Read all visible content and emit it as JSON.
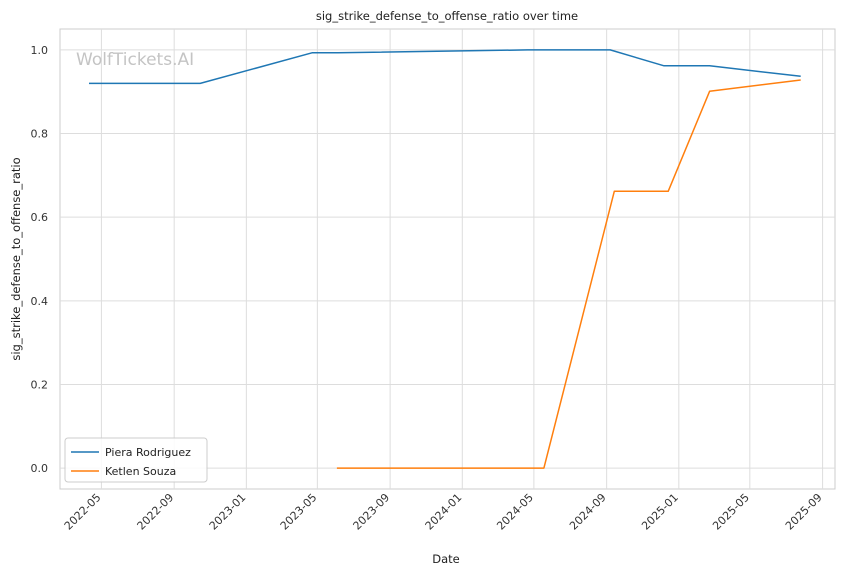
{
  "chart_data": {
    "type": "line",
    "title": "sig_strike_defense_to_offense_ratio over time",
    "xlabel": "Date",
    "ylabel": "sig_strike_defense_to_offense_ratio",
    "watermark": "WolfTickets.AI",
    "x_ticks": [
      "2022-05",
      "2022-09",
      "2023-01",
      "2023-05",
      "2023-09",
      "2024-01",
      "2024-05",
      "2024-09",
      "2025-01",
      "2025-05",
      "2025-09"
    ],
    "y_ticks": [
      "0.0",
      "0.2",
      "0.4",
      "0.6",
      "0.8",
      "1.0"
    ],
    "xlim": [
      "2022-02-20",
      "2025-09-22"
    ],
    "ylim": [
      -0.05,
      1.05
    ],
    "grid": true,
    "legend_position": "lower-left",
    "series": [
      {
        "name": "Piera Rodriguez",
        "color": "#1f77b4",
        "points": [
          [
            "2022-04-10",
            0.92
          ],
          [
            "2022-10-15",
            0.92
          ],
          [
            "2023-04-22",
            0.993
          ],
          [
            "2023-06-05",
            0.993
          ],
          [
            "2024-04-20",
            1.0
          ],
          [
            "2024-09-07",
            1.0
          ],
          [
            "2024-12-07",
            0.962
          ],
          [
            "2025-02-22",
            0.962
          ],
          [
            "2025-07-26",
            0.937
          ]
        ]
      },
      {
        "name": "Ketlen Souza",
        "color": "#ff7f0e",
        "points": [
          [
            "2023-06-03",
            0.0
          ],
          [
            "2024-05-18",
            0.0
          ],
          [
            "2024-09-14",
            0.662
          ],
          [
            "2024-12-14",
            0.662
          ],
          [
            "2025-02-22",
            0.901
          ],
          [
            "2025-07-26",
            0.928
          ]
        ]
      }
    ]
  }
}
